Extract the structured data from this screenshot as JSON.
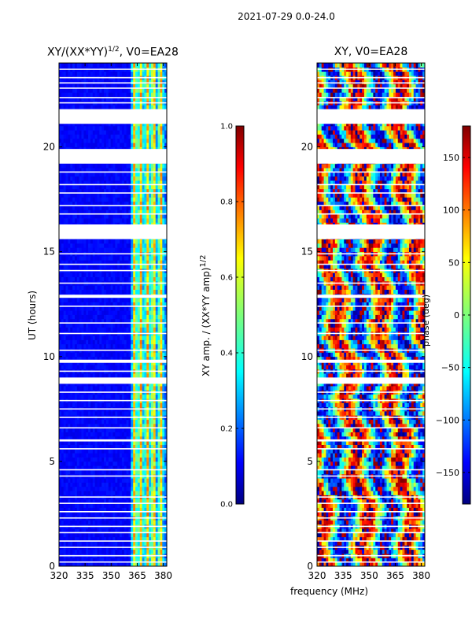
{
  "figure": {
    "suptitle": "2021-07-29 0.0-24.0",
    "xlabel": "frequency (MHz)",
    "ylabel": "UT (hours)"
  },
  "chart_data": [
    {
      "type": "heatmap",
      "title_main": "XY/(XX*YY)",
      "title_sup": "1/2",
      "title_rest": ", V0=EA28",
      "xlabel": "frequency (MHz)",
      "ylabel": "UT (hours)",
      "xlim": [
        320,
        382
      ],
      "ylim": [
        0,
        24
      ],
      "xticks": [
        320,
        335,
        350,
        365,
        380
      ],
      "yticks": [
        0,
        5,
        10,
        15,
        20
      ],
      "colormap": "jet",
      "description_of_field": "normalized cross-correlation amplitude; mostly low (~0.1) below 360 MHz, higher (0.3-0.7) in bands between 362 and 380 MHz",
      "colorbar": {
        "label_main": "XY amp. / (XX*YY amp)",
        "label_sup": "1/2",
        "range": [
          0.0,
          1.0
        ],
        "ticks": [
          "0.0",
          "0.2",
          "0.4",
          "0.6",
          "0.8",
          "1.0"
        ]
      }
    },
    {
      "type": "heatmap",
      "title": "XY, V0=EA28",
      "xlabel": "frequency (MHz)",
      "ylabel": "",
      "xlim": [
        320,
        382
      ],
      "ylim": [
        0,
        24
      ],
      "xticks": [
        320,
        335,
        350,
        365,
        380
      ],
      "yticks": [
        0,
        5,
        10,
        15,
        20
      ],
      "colormap": "jet",
      "description_of_field": "cross-correlation phase, varying across full -180 to 180 deg range",
      "colorbar": {
        "label": "phase (deg)",
        "range": [
          -180,
          180
        ],
        "ticks": [
          "150",
          "100",
          "50",
          "0",
          "−50",
          "−100",
          "−150"
        ]
      }
    }
  ],
  "flagged_gaps_hours": [
    [
      21.1,
      21.8
    ],
    [
      19.2,
      19.9
    ],
    [
      15.6,
      16.3
    ],
    [
      12.8,
      12.95
    ],
    [
      9.7,
      9.85
    ],
    [
      8.7,
      9.0
    ],
    [
      5.95,
      6.05
    ]
  ],
  "flagged_lines_hours": [
    23.7,
    23.3,
    23.05,
    22.8,
    22.35,
    22.1,
    18.8,
    18.2,
    17.8,
    17.2,
    16.8,
    14.9,
    14.4,
    14.1,
    13.5,
    12.4,
    11.6,
    11.1,
    10.3,
    9.3,
    8.3,
    7.9,
    7.5,
    7.1,
    6.6,
    5.6,
    4.6,
    4.3,
    3.3,
    3.0,
    2.6,
    2.3,
    1.9,
    1.6,
    1.2,
    0.9,
    0.5,
    0.2
  ]
}
